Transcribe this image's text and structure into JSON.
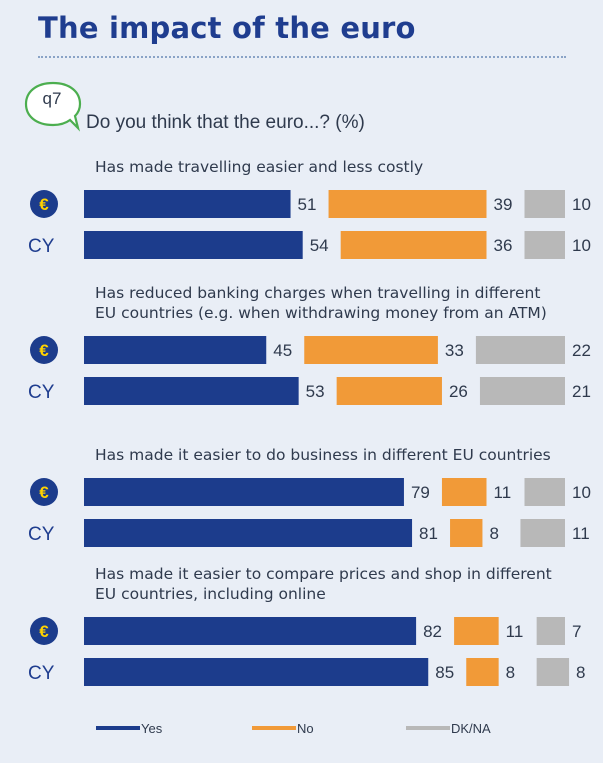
{
  "page": {
    "title": "The impact of the euro",
    "question_badge": "q7",
    "question_text": "Do you think that the euro...? (%)"
  },
  "colors": {
    "yes": "#1c3c8c",
    "no": "#f19a38",
    "dkna": "#b8b8b8",
    "euro_circle": "#1c3c8c",
    "euro_symbol": "#ffd200",
    "text": "#2f3a4d",
    "badge_green": "#4cae4f"
  },
  "chart_data": {
    "type": "bar",
    "orientation": "horizontal",
    "stacked": true,
    "unit": "%",
    "xlim": [
      0,
      100
    ],
    "legend_position": "bottom",
    "series": [
      {
        "name": "Yes",
        "color": "#1c3c8c"
      },
      {
        "name": "No",
        "color": "#f19a38"
      },
      {
        "name": "DK/NA",
        "color": "#b8b8b8"
      }
    ],
    "groups": [
      {
        "label_lines": [
          "Has made travelling easier and less costly"
        ],
        "rows": [
          {
            "label": "€",
            "icon": "euro-icon",
            "values": [
              51,
              39,
              10
            ]
          },
          {
            "label": "CY",
            "values": [
              54,
              36,
              10
            ]
          }
        ]
      },
      {
        "label_lines": [
          "Has reduced banking charges when travelling in different",
          "EU countries (e.g. when withdrawing money from an ATM)"
        ],
        "rows": [
          {
            "label": "€",
            "icon": "euro-icon",
            "values": [
              45,
              33,
              22
            ]
          },
          {
            "label": "CY",
            "values": [
              53,
              26,
              21
            ]
          }
        ]
      },
      {
        "label_lines": [
          "Has made it easier to do business in different EU countries"
        ],
        "rows": [
          {
            "label": "€",
            "icon": "euro-icon",
            "values": [
              79,
              11,
              10
            ]
          },
          {
            "label": "CY",
            "values": [
              81,
              8,
              11
            ]
          }
        ]
      },
      {
        "label_lines": [
          "Has made it easier to compare prices and shop in different",
          "EU countries, including online"
        ],
        "rows": [
          {
            "label": "€",
            "icon": "euro-icon",
            "values": [
              82,
              11,
              7
            ]
          },
          {
            "label": "CY",
            "values": [
              85,
              8,
              8
            ]
          }
        ]
      }
    ]
  }
}
